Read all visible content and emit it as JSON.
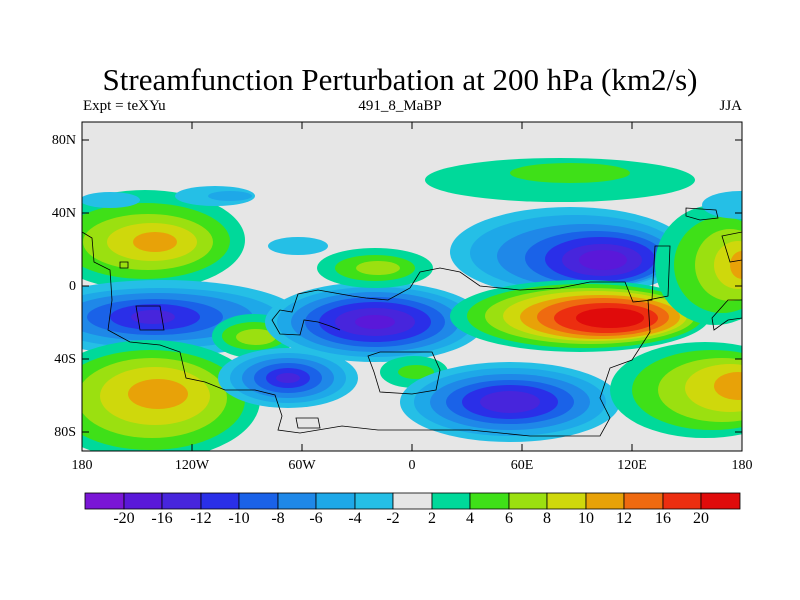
{
  "title": "Streamfunction Perturbation at 200 hPa (km2/s)",
  "subtitle_left": "Expt = teXYu",
  "subtitle_center": "491_8_MaBP",
  "subtitle_right": "JJA",
  "lat_labels": [
    "80N",
    "40N",
    "0",
    "40S",
    "80S"
  ],
  "lon_labels": [
    "180",
    "120W",
    "60W",
    "0",
    "60E",
    "120E",
    "180"
  ],
  "palette": {
    "neg20plus": "#7a16d6",
    "neg20": "#5a18d9",
    "neg16": "#4725dc",
    "neg12": "#2a2fe8",
    "neg10": "#1a62e8",
    "neg8": "#1f88e8",
    "neg6": "#1ea8e8",
    "neg4": "#25bfe6",
    "neutral": "#e6e6e6",
    "pos2": "#00d99a",
    "pos4": "#3fe018",
    "pos6": "#9be010",
    "pos8": "#cfd80c",
    "pos10": "#e8a208",
    "pos12": "#ef6a10",
    "pos16": "#ec2e10",
    "pos20plus": "#e00b0b",
    "coast": "#000000"
  },
  "chart_data": {
    "type": "contour-map",
    "projection": "cylindrical-equidistant",
    "lon_range": [
      -180,
      180
    ],
    "lat_range": [
      -90,
      90
    ],
    "colorbar_labels": [
      "-20",
      "-16",
      "-12",
      "-10",
      "-8",
      "-6",
      "-4",
      "-2",
      "2",
      "4",
      "6",
      "8",
      "10",
      "12",
      "16",
      "20"
    ],
    "features": [
      {
        "kind": "high",
        "lon": -135,
        "lat": 25,
        "max": 8
      },
      {
        "kind": "low",
        "lon": -138,
        "lat": -17,
        "min": -12
      },
      {
        "kind": "high",
        "lon": -136,
        "lat": -57,
        "max": 10
      },
      {
        "kind": "high",
        "lon": -68,
        "lat": -27,
        "max": 6
      },
      {
        "kind": "low",
        "lon": -67,
        "lat": -50,
        "min": -14
      },
      {
        "kind": "low",
        "lon": -22,
        "lat": -20,
        "min": -16
      },
      {
        "kind": "high",
        "lon": -22,
        "lat": 12,
        "max": 8
      },
      {
        "kind": "high",
        "lon": 10,
        "lat": -44,
        "max": 4
      },
      {
        "kind": "low",
        "lon": 45,
        "lat": 19,
        "min": -4
      },
      {
        "kind": "low",
        "lon": 102,
        "lat": 14,
        "min": -16
      },
      {
        "kind": "high",
        "lon": 104,
        "lat": -17,
        "max": 20
      },
      {
        "kind": "low",
        "lon": 55,
        "lat": -63,
        "min": -14
      },
      {
        "kind": "high",
        "lon": 75,
        "lat": 53,
        "max": 4
      },
      {
        "kind": "high",
        "lon": 175,
        "lat": 10,
        "max": 10
      },
      {
        "kind": "high",
        "lon": 175,
        "lat": -53,
        "max": 10
      },
      {
        "kind": "low",
        "lon": -90,
        "lat": 50,
        "min": -4
      }
    ]
  }
}
